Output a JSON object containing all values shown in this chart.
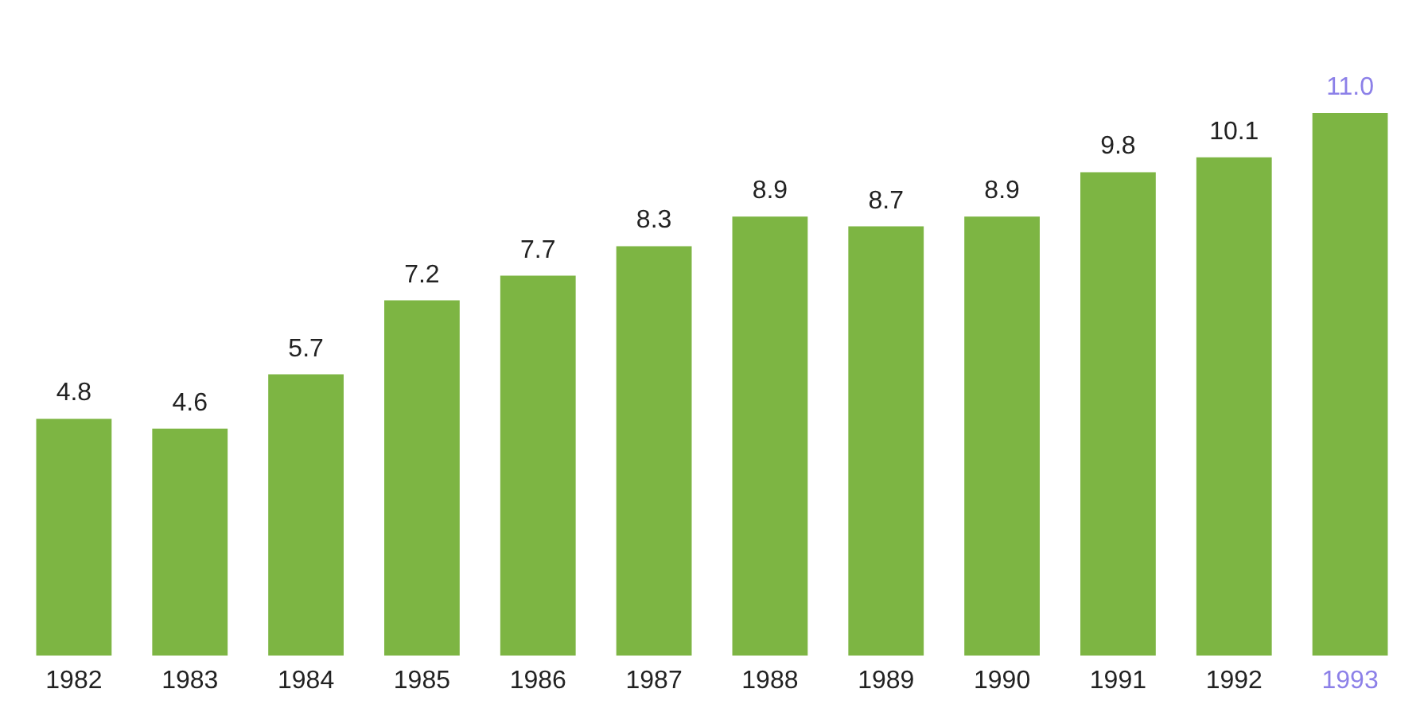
{
  "chart_data": {
    "type": "bar",
    "categories": [
      "1982",
      "1983",
      "1984",
      "1985",
      "1986",
      "1987",
      "1988",
      "1989",
      "1990",
      "1991",
      "1992",
      "1993"
    ],
    "values": [
      4.8,
      4.6,
      5.7,
      7.2,
      7.7,
      8.3,
      8.9,
      8.7,
      8.9,
      9.8,
      10.1,
      11.0
    ],
    "value_labels": [
      "4.8",
      "4.6",
      "5.7",
      "7.2",
      "7.7",
      "8.3",
      "8.9",
      "8.7",
      "8.9",
      "9.8",
      "10.1",
      "11.0"
    ],
    "color": "#7db543"
  }
}
